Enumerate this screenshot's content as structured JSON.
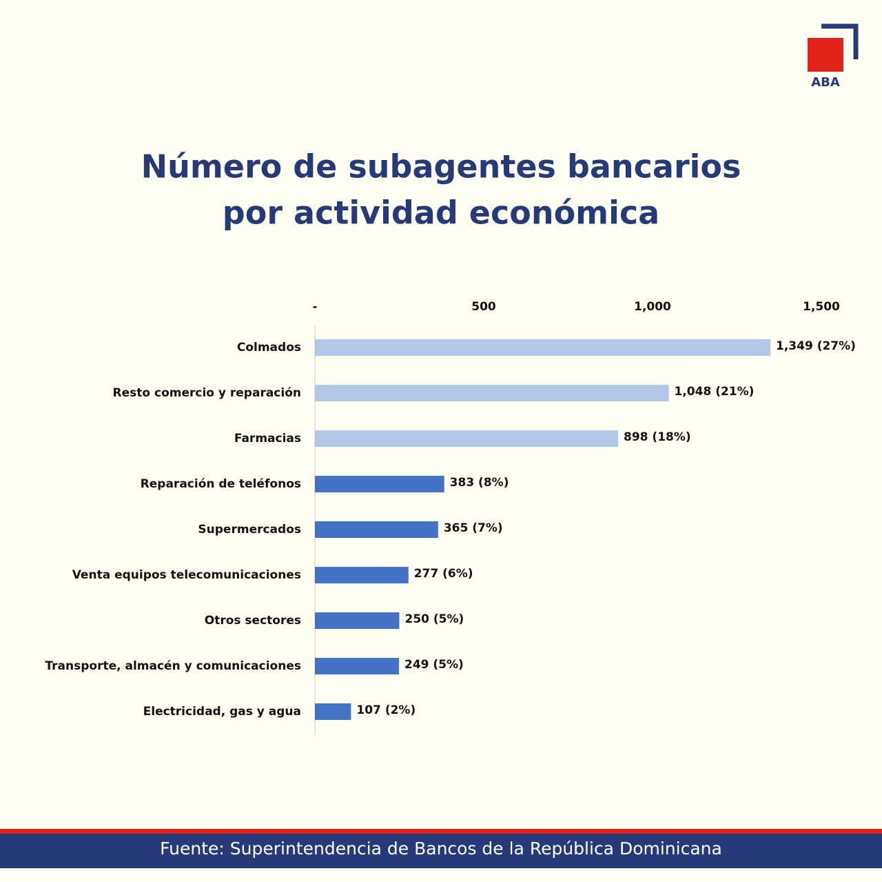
{
  "brand": "ABA",
  "source": "Fuente: Superintendencia de Bancos de la República Dominicana",
  "chart_data": {
    "type": "bar",
    "orientation": "horizontal",
    "title": [
      "Número de subagentes bancarios",
      "por actividad económica"
    ],
    "categories": [
      "Colmados",
      "Resto comercio y reparación",
      "Farmacias",
      "Reparación de teléfonos",
      "Supermercados",
      "Venta equipos telecomunicaciones",
      "Otros sectores",
      "Transporte, almacén y comunicaciones",
      "Electricidad, gas y agua"
    ],
    "values": [
      1349,
      1048,
      898,
      383,
      365,
      277,
      250,
      249,
      107
    ],
    "value_labels": [
      "1,349 (27%)",
      "1,048 (21%)",
      "898 (18%)",
      "383 (8%)",
      "365 (7%)",
      "277 (6%)",
      "250 (5%)",
      "249 (5%)",
      "107 (2%)"
    ],
    "colors": [
      "#b4c7e7",
      "#b4c7e7",
      "#b4c7e7",
      "#4472c4",
      "#4472c4",
      "#4472c4",
      "#4472c4",
      "#4472c4",
      "#4472c4"
    ],
    "xlim": [
      0,
      1500
    ],
    "xticks": [
      {
        "value": 0,
        "label": "-"
      },
      500,
      {
        "value": 1000,
        "label": "1,000"
      },
      {
        "value": 1500,
        "label": "1,500"
      }
    ],
    "grid": false
  }
}
